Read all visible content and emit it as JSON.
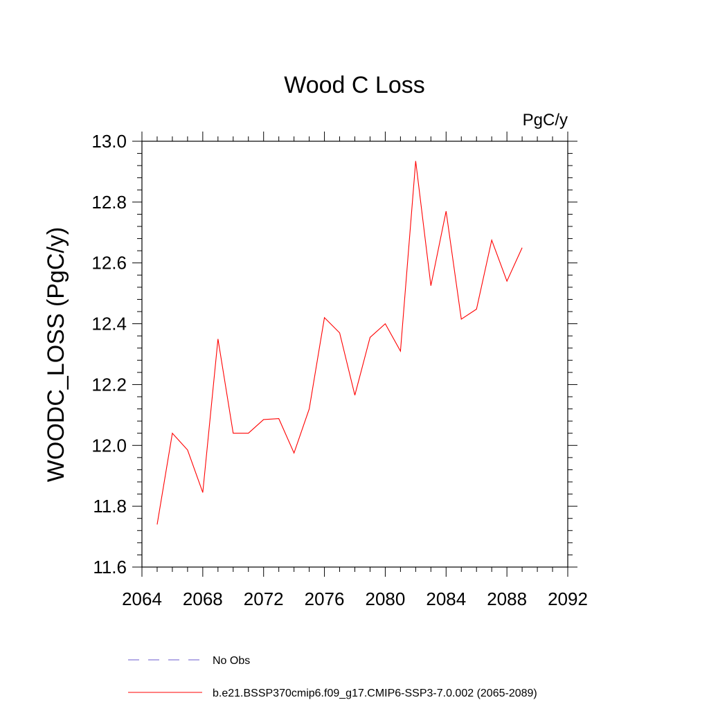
{
  "chart_data": {
    "type": "line",
    "title": "Wood C Loss",
    "units_label": "PgC/y",
    "ylabel": "WOODC_LOSS  (PgC/y)",
    "xlabel": "",
    "xlim": [
      2064,
      2092
    ],
    "ylim": [
      11.6,
      13.0
    ],
    "x_ticks": [
      2064,
      2068,
      2072,
      2076,
      2080,
      2084,
      2088,
      2092
    ],
    "y_ticks": [
      "11.6",
      "11.8",
      "12.0",
      "12.2",
      "12.4",
      "12.6",
      "12.8",
      "13.0"
    ],
    "series": [
      {
        "name": "b.e21.BSSP370cmip6.f09_g17.CMIP6-SSP3-7.0.002 (2065-2089)",
        "color": "#ff0000",
        "style": "solid",
        "x": [
          2065,
          2066,
          2067,
          2068,
          2069,
          2070,
          2071,
          2072,
          2073,
          2074,
          2075,
          2076,
          2077,
          2078,
          2079,
          2080,
          2081,
          2082,
          2083,
          2084,
          2085,
          2086,
          2087,
          2088,
          2089
        ],
        "values": [
          11.74,
          12.04,
          11.985,
          11.845,
          12.35,
          12.04,
          12.04,
          12.085,
          12.088,
          11.975,
          12.12,
          12.42,
          12.37,
          12.165,
          12.355,
          12.4,
          12.31,
          12.935,
          12.525,
          12.77,
          12.415,
          12.448,
          12.675,
          12.54,
          12.65
        ]
      }
    ],
    "legend": [
      {
        "label": "No Obs",
        "color": "#6a5acd",
        "style": "dashed"
      },
      {
        "label": "b.e21.BSSP370cmip6.f09_g17.CMIP6-SSP3-7.0.002 (2065-2089)",
        "color": "#ff0000",
        "style": "solid"
      }
    ]
  }
}
